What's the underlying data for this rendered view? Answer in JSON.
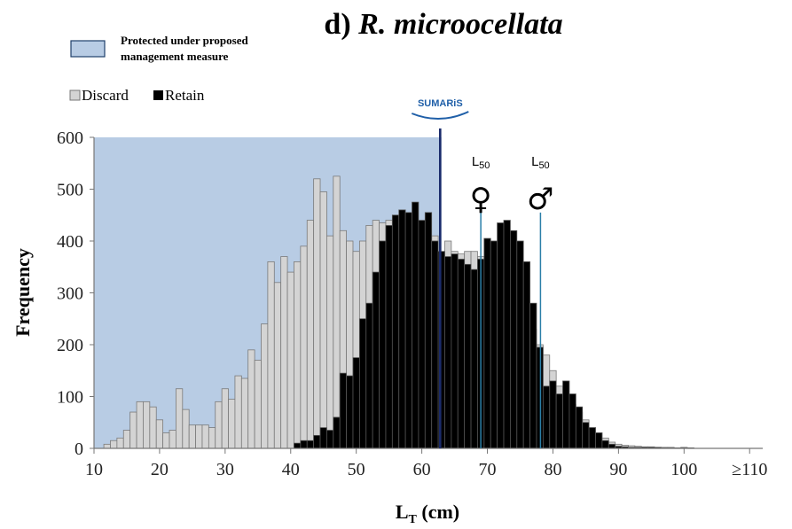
{
  "chart_data": {
    "type": "bar",
    "title_prefix": "d) ",
    "title_species": "R. microocellata",
    "ylabel": "Frequency",
    "xlabel_main": "L",
    "xlabel_sub": "T",
    "xlabel_unit": " (cm)",
    "xlim": [
      10,
      112
    ],
    "ylim": [
      0,
      600
    ],
    "x_ticks": [
      {
        "v": 10,
        "label": "10"
      },
      {
        "v": 20,
        "label": "20"
      },
      {
        "v": 30,
        "label": "30"
      },
      {
        "v": 40,
        "label": "40"
      },
      {
        "v": 50,
        "label": "50"
      },
      {
        "v": 60,
        "label": "60"
      },
      {
        "v": 70,
        "label": "70"
      },
      {
        "v": 80,
        "label": "80"
      },
      {
        "v": 90,
        "label": "90"
      },
      {
        "v": 100,
        "label": "100"
      },
      {
        "v": 110,
        "label": "≥110"
      }
    ],
    "y_ticks": [
      0,
      100,
      200,
      300,
      400,
      500,
      600
    ],
    "protected_region": {
      "x_start": 10,
      "x_end": 63,
      "legend_line1": "Protected under proposed",
      "legend_line2": "management measure",
      "color": "#b8cce4"
    },
    "legend": [
      {
        "name": "Discard",
        "color": "#d4d4d4"
      },
      {
        "name": "Retain",
        "color": "#000000"
      }
    ],
    "bin_width": 1,
    "series": [
      {
        "name": "Discard",
        "x": [
          12,
          13,
          14,
          15,
          16,
          17,
          18,
          19,
          20,
          21,
          22,
          23,
          24,
          25,
          26,
          27,
          28,
          29,
          30,
          31,
          32,
          33,
          34,
          35,
          36,
          37,
          38,
          39,
          40,
          41,
          42,
          43,
          44,
          45,
          46,
          47,
          48,
          49,
          50,
          51,
          52,
          53,
          54,
          55,
          56,
          57,
          58,
          59,
          60,
          61,
          62,
          63,
          64,
          65,
          66,
          67,
          68,
          69,
          70,
          71,
          72,
          73,
          74,
          75,
          76,
          77,
          78,
          79,
          80,
          81,
          82,
          83,
          84,
          85,
          86,
          87,
          88,
          89,
          90,
          91,
          92,
          93,
          94,
          95,
          96,
          97,
          98,
          99,
          100,
          101
        ],
        "values": [
          8,
          15,
          20,
          35,
          70,
          90,
          90,
          80,
          55,
          30,
          35,
          115,
          75,
          45,
          45,
          45,
          40,
          90,
          115,
          95,
          140,
          135,
          190,
          170,
          240,
          360,
          320,
          370,
          340,
          360,
          390,
          440,
          520,
          495,
          410,
          525,
          420,
          400,
          380,
          400,
          430,
          440,
          435,
          440,
          400,
          370,
          390,
          340,
          365,
          330,
          410,
          340,
          400,
          380,
          375,
          380,
          380,
          370,
          340,
          320,
          300,
          290,
          280,
          260,
          245,
          230,
          200,
          180,
          150,
          120,
          100,
          85,
          70,
          55,
          40,
          30,
          20,
          12,
          8,
          6,
          5,
          4,
          3,
          3,
          2,
          2,
          2,
          1,
          2,
          1
        ]
      },
      {
        "name": "Retain",
        "x": [
          41,
          42,
          43,
          44,
          45,
          46,
          47,
          48,
          49,
          50,
          51,
          52,
          53,
          54,
          55,
          56,
          57,
          58,
          59,
          60,
          61,
          62,
          63,
          64,
          65,
          66,
          67,
          68,
          69,
          70,
          71,
          72,
          73,
          74,
          75,
          76,
          77,
          78,
          79,
          80,
          81,
          82,
          83,
          84,
          85,
          86,
          87,
          88,
          89,
          90,
          91,
          92,
          93,
          94,
          95,
          96,
          97,
          98,
          99,
          100,
          101
        ],
        "values": [
          10,
          15,
          15,
          25,
          40,
          35,
          60,
          145,
          140,
          175,
          250,
          280,
          340,
          400,
          430,
          450,
          460,
          455,
          475,
          440,
          455,
          400,
          380,
          370,
          375,
          365,
          355,
          345,
          365,
          405,
          400,
          435,
          440,
          420,
          400,
          360,
          280,
          195,
          120,
          130,
          105,
          130,
          105,
          80,
          50,
          40,
          30,
          15,
          8,
          4,
          3,
          2,
          2,
          2,
          2,
          2,
          1,
          1,
          1,
          1,
          1
        ]
      }
    ],
    "markers": [
      {
        "x": 62.8,
        "type": "logo",
        "color": "#1a2b6b",
        "top": 600,
        "logo_text": "SUMARiS"
      },
      {
        "x": 69.0,
        "label": "L",
        "label_sub": "50",
        "symbol": "♀",
        "color": "#2b7fa8",
        "top": 455
      },
      {
        "x": 78.1,
        "label": "L",
        "label_sub": "50",
        "symbol": "♂",
        "color": "#2b7fa8",
        "top": 455
      }
    ]
  }
}
